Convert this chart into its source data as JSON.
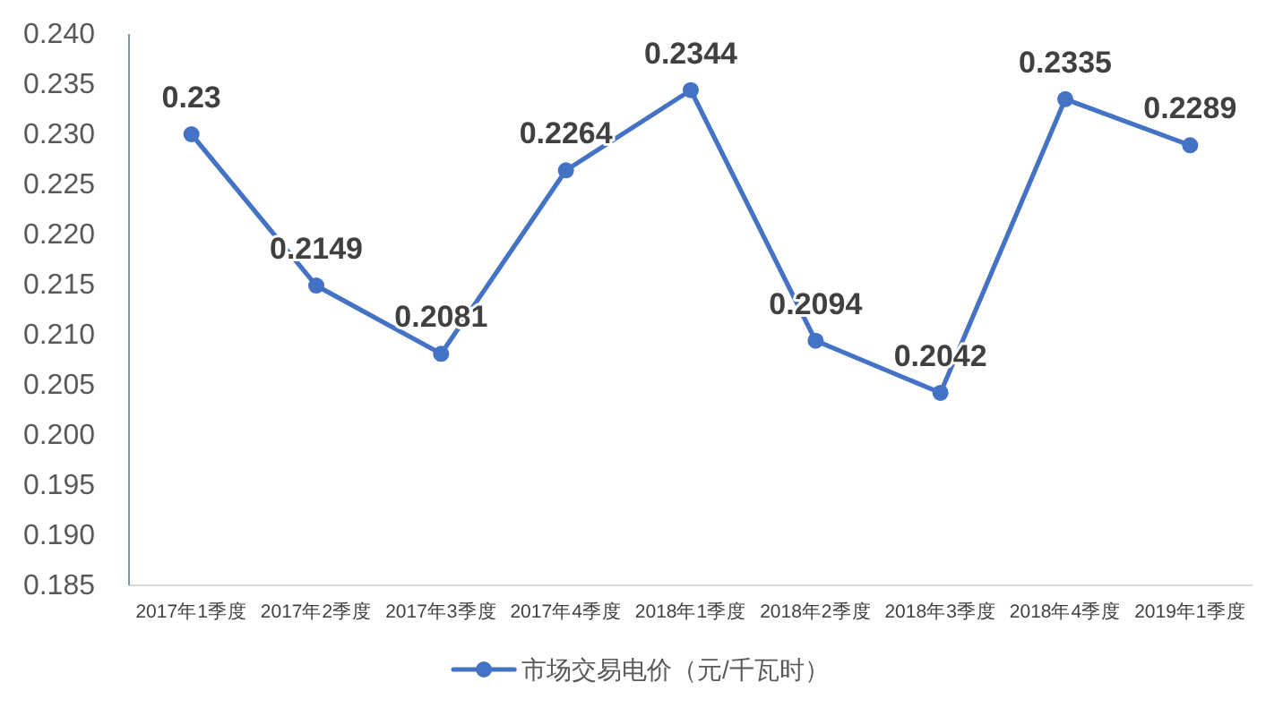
{
  "chart_data": {
    "type": "line",
    "categories": [
      "2017年1季度",
      "2017年2季度",
      "2017年3季度",
      "2017年4季度",
      "2018年1季度",
      "2018年2季度",
      "2018年3季度",
      "2018年4季度",
      "2019年1季度"
    ],
    "series": [
      {
        "name": "市场交易电价（元/千瓦时）",
        "color": "#4472c4",
        "values": [
          0.23,
          0.2149,
          0.2081,
          0.2264,
          0.2344,
          0.2094,
          0.2042,
          0.2335,
          0.2289
        ]
      }
    ],
    "ylim": [
      0.185,
      0.24
    ],
    "yticks": [
      0.185,
      {
        "value": 0.19,
        "label": "0.190"
      },
      0.195,
      {
        "value": 0.2,
        "label": "0.200"
      },
      0.205,
      {
        "value": 0.21,
        "label": "0.210"
      },
      0.215,
      {
        "value": 0.22,
        "label": "0.220"
      },
      0.225,
      {
        "value": 0.23,
        "label": "0.230"
      },
      0.235,
      {
        "value": 0.24,
        "label": "0.240"
      }
    ],
    "data_labels": true,
    "marker": "circle",
    "line_style": "solid",
    "legend": "bottom"
  }
}
